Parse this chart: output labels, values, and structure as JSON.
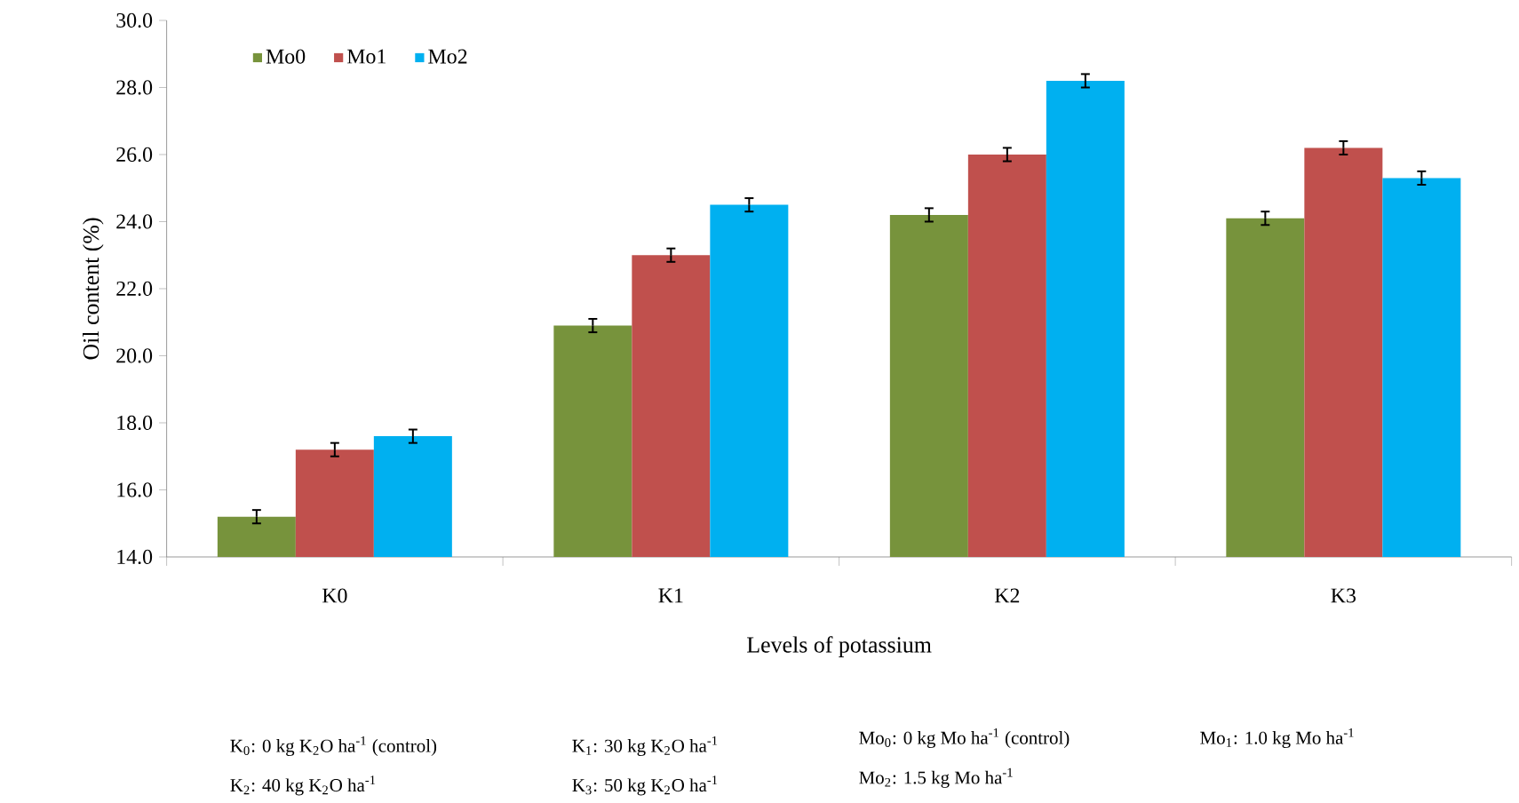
{
  "chart_data": {
    "type": "bar",
    "xlabel": "Levels of  potassium",
    "ylabel": "Oil content (%)",
    "categories": [
      "K0",
      "K1",
      "K2",
      "K3"
    ],
    "series": [
      {
        "name": "Mo0",
        "color": "#77933c",
        "values": [
          15.2,
          20.9,
          24.2,
          24.1
        ],
        "errors": [
          0.2,
          0.2,
          0.2,
          0.2
        ]
      },
      {
        "name": "Mo1",
        "color": "#c0504d",
        "values": [
          17.2,
          23.0,
          26.0,
          26.2
        ],
        "errors": [
          0.2,
          0.2,
          0.2,
          0.2
        ]
      },
      {
        "name": "Mo2",
        "color": "#00b0f0",
        "values": [
          17.6,
          24.5,
          28.2,
          25.3
        ],
        "errors": [
          0.2,
          0.2,
          0.2,
          0.2
        ]
      }
    ],
    "ylim": [
      14,
      30
    ],
    "yticks": [
      {
        "value": 14,
        "label": "14.0"
      },
      {
        "value": 16,
        "label": "16.0"
      },
      {
        "value": 18,
        "label": "18.0"
      },
      {
        "value": 20,
        "label": "20.0"
      },
      {
        "value": 22,
        "label": "22.0"
      },
      {
        "value": 24,
        "label": "24.0"
      },
      {
        "value": 26,
        "label": "26.0"
      },
      {
        "value": 28,
        "label": "28.0"
      },
      {
        "value": 30,
        "label": "30.0"
      }
    ],
    "grid": false,
    "legend": "top left",
    "annotations": [
      "K$_{0}$: 0 kg K$_{2}$O ha$^{-1}$ (control)",
      "K$_{1}$: 30 kg K$_{2}$O ha$^{-1}$",
      "Mo$_{0}$: 0 kg Mo ha$^{-1}$ (control)",
      "Mo$_{1}$: 1.0 kg  Mo ha$^{-1}$",
      "K$_{2}$: 40 kg K$_{2}$O ha$^{-1}$",
      "K$_{3}$: 50 kg K$_{2}$O ha$^{-1}$",
      "Mo$_{2}$: 1.5 kg Mo ha$^{-1}$"
    ]
  }
}
